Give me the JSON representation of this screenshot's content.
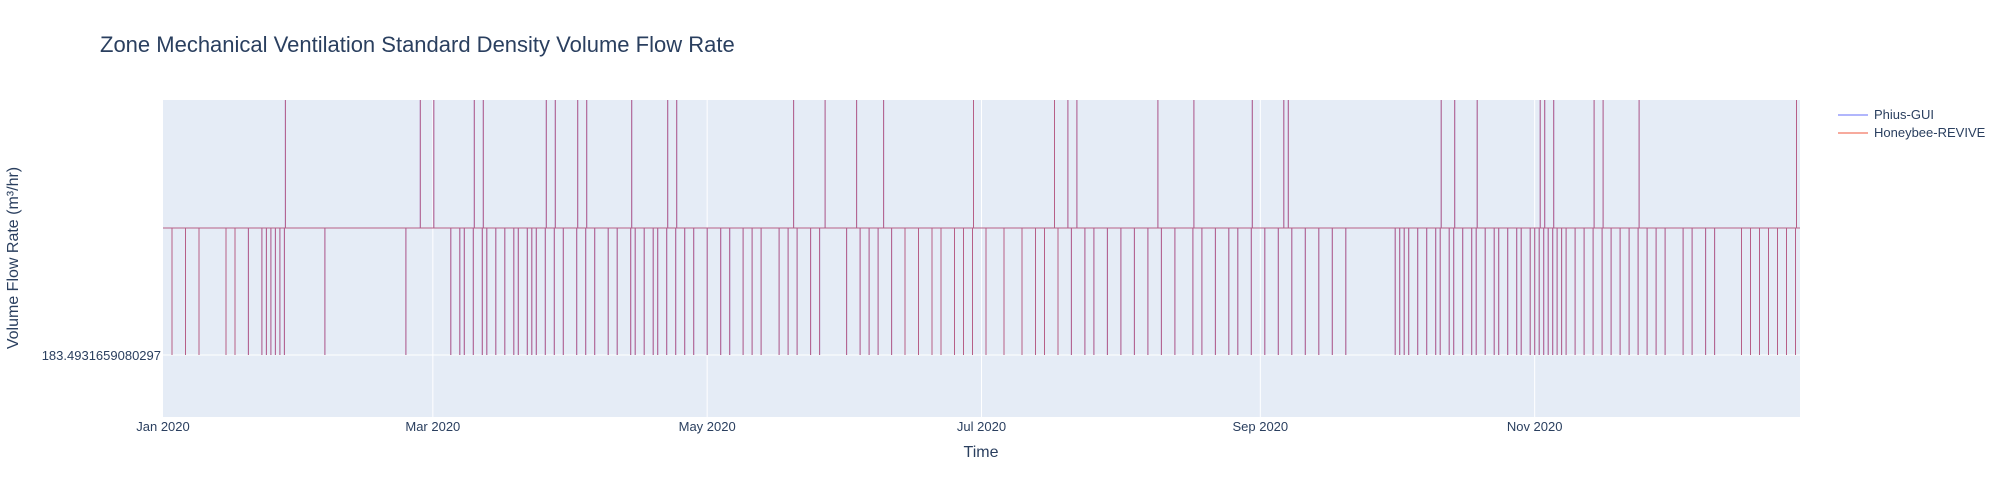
{
  "chart_data": {
    "type": "line",
    "title": "Zone Mechanical Ventilation Standard Density Volume Flow Rate",
    "xlabel": "Time",
    "ylabel": "Volume Flow Rate (m³/hr)",
    "x_tick_labels": [
      "Jan 2020",
      "Mar 2020",
      "May 2020",
      "Jul 2020",
      "Sep 2020",
      "Nov 2020"
    ],
    "x_ticks": [
      "2020-01-01",
      "2020-03-01",
      "2020-05-01",
      "2020-07-01",
      "2020-09-01",
      "2020-11-01"
    ],
    "xlim": [
      "2020-01-01",
      "2020-12-30"
    ],
    "y_tick_labels": [
      "183.4931659080297"
    ],
    "y_ticks": [
      183.4931659080297
    ],
    "levels": {
      "low": 183.4931659080297
    },
    "grid": true,
    "legend_position": "top-right",
    "series": [
      {
        "name": "Phius-GUI",
        "color": "#636efa"
      },
      {
        "name": "Honeybee-REVIVE",
        "color": "#ef553b"
      }
    ],
    "profile_note": "Hourly step profile switching between a low level (183.4931659080297), a middle level and a high level.",
    "events": {
      "drops_to_low": [
        "2020-01-03",
        "2020-01-06",
        "2020-01-09",
        "2020-01-15",
        "2020-01-17",
        "2020-01-20",
        "2020-01-23",
        "2020-01-24",
        "2020-01-25",
        "2020-01-26",
        "2020-01-27",
        "2020-01-28",
        "2020-02-06",
        "2020-02-24",
        "2020-03-05",
        "2020-03-07",
        "2020-03-08",
        "2020-03-10",
        "2020-03-12",
        "2020-03-13",
        "2020-03-15",
        "2020-03-17",
        "2020-03-19",
        "2020-03-20",
        "2020-03-22",
        "2020-03-23",
        "2020-03-24",
        "2020-03-26",
        "2020-03-28",
        "2020-03-30",
        "2020-04-02",
        "2020-04-04",
        "2020-04-06",
        "2020-04-09",
        "2020-04-11",
        "2020-04-14",
        "2020-04-15",
        "2020-04-17",
        "2020-04-19",
        "2020-04-20",
        "2020-04-22",
        "2020-04-24",
        "2020-04-26",
        "2020-04-28",
        "2020-05-01",
        "2020-05-04",
        "2020-05-06",
        "2020-05-09",
        "2020-05-11",
        "2020-05-13",
        "2020-05-17",
        "2020-05-19",
        "2020-05-21",
        "2020-05-24",
        "2020-05-26",
        "2020-06-01",
        "2020-06-04",
        "2020-06-06",
        "2020-06-08",
        "2020-06-11",
        "2020-06-14",
        "2020-06-17",
        "2020-06-20",
        "2020-06-22",
        "2020-06-25",
        "2020-06-27",
        "2020-06-29",
        "2020-07-02",
        "2020-07-06",
        "2020-07-10",
        "2020-07-13",
        "2020-07-15",
        "2020-07-18",
        "2020-07-21",
        "2020-07-24",
        "2020-07-26",
        "2020-07-29",
        "2020-08-01",
        "2020-08-04",
        "2020-08-07",
        "2020-08-10",
        "2020-08-13",
        "2020-08-17",
        "2020-08-19",
        "2020-08-22",
        "2020-08-25",
        "2020-08-27",
        "2020-08-30",
        "2020-09-02",
        "2020-09-05",
        "2020-09-08",
        "2020-09-11",
        "2020-09-14",
        "2020-09-17",
        "2020-09-20",
        "2020-10-01",
        "2020-10-02",
        "2020-10-03",
        "2020-10-04",
        "2020-10-06",
        "2020-10-08",
        "2020-10-10",
        "2020-10-11",
        "2020-10-13",
        "2020-10-14",
        "2020-10-16",
        "2020-10-18",
        "2020-10-19",
        "2020-10-21",
        "2020-10-23",
        "2020-10-24",
        "2020-10-26",
        "2020-10-28",
        "2020-10-29",
        "2020-10-31",
        "2020-11-01",
        "2020-11-02",
        "2020-11-03",
        "2020-11-04",
        "2020-11-05",
        "2020-11-06",
        "2020-11-07",
        "2020-11-08",
        "2020-11-10",
        "2020-11-12",
        "2020-11-14",
        "2020-11-16",
        "2020-11-18",
        "2020-11-20",
        "2020-11-22",
        "2020-11-24",
        "2020-11-26",
        "2020-11-28",
        "2020-11-30",
        "2020-12-04",
        "2020-12-06",
        "2020-12-09",
        "2020-12-11",
        "2020-12-17",
        "2020-12-19",
        "2020-12-21",
        "2020-12-23",
        "2020-12-25",
        "2020-12-27",
        "2020-12-29"
      ],
      "spikes_to_high": [
        "2020-01-28",
        "2020-02-27",
        "2020-03-01",
        "2020-03-10",
        "2020-03-12",
        "2020-03-26",
        "2020-03-28",
        "2020-04-02",
        "2020-04-04",
        "2020-04-14",
        "2020-04-22",
        "2020-04-24",
        "2020-05-20",
        "2020-05-27",
        "2020-06-03",
        "2020-06-09",
        "2020-06-29",
        "2020-07-17",
        "2020-07-20",
        "2020-07-22",
        "2020-08-09",
        "2020-08-17",
        "2020-08-30",
        "2020-09-06",
        "2020-09-07",
        "2020-10-11",
        "2020-10-14",
        "2020-10-19",
        "2020-11-02",
        "2020-11-03",
        "2020-11-05",
        "2020-11-14",
        "2020-11-16",
        "2020-11-24",
        "2020-12-29"
      ]
    }
  }
}
